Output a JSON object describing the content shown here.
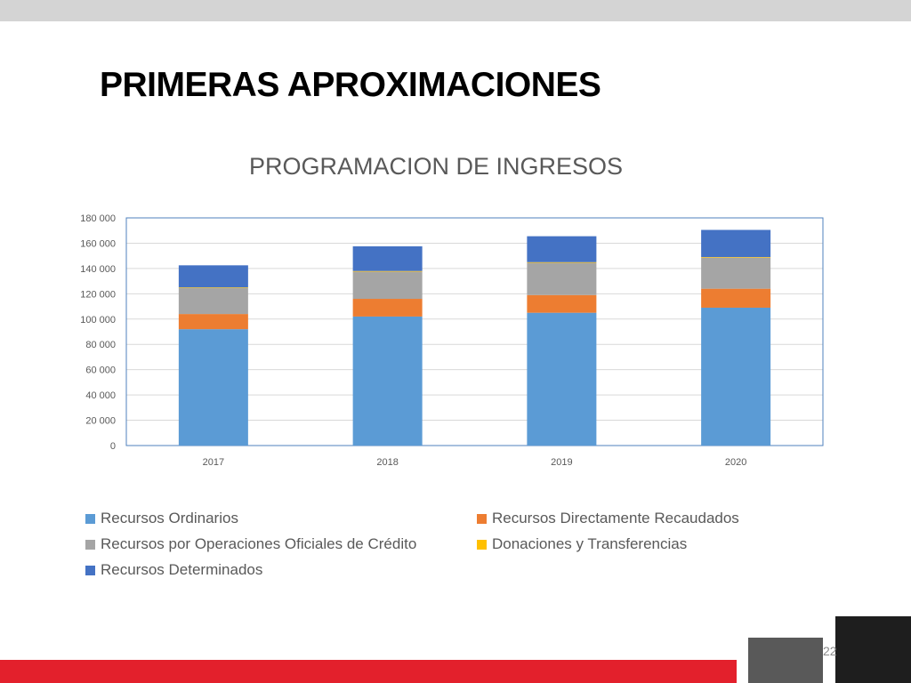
{
  "slide": {
    "title": "PRIMERAS APROXIMACIONES",
    "page_number": "22"
  },
  "colors": {
    "recursos_ordinarios": "#5b9bd5",
    "recursos_directamente_recaudados": "#ed7d31",
    "operaciones_oficiales_credito": "#a5a5a5",
    "donaciones_transferencias": "#ffc000",
    "recursos_determinados": "#4472c4",
    "accent_red": "#e3202c"
  },
  "chart_data": {
    "type": "bar",
    "stacked": true,
    "title": "PROGRAMACION DE INGRESOS",
    "categories": [
      "2017",
      "2018",
      "2019",
      "2020"
    ],
    "y_tick_labels": [
      "0",
      "20 000",
      "40 000",
      "60 000",
      "80 000",
      "100 000",
      "120 000",
      "140 000",
      "160 000",
      "180 000"
    ],
    "ylim": [
      0,
      180000
    ],
    "grid": true,
    "legend_position": "bottom",
    "series": [
      {
        "name": "Recursos Ordinarios",
        "values": [
          92000,
          102000,
          105000,
          109000
        ]
      },
      {
        "name": "Recursos Directamente Recaudados",
        "values": [
          12000,
          14000,
          14000,
          15000
        ]
      },
      {
        "name": "Recursos por Operaciones Oficiales de Crédito",
        "values": [
          20500,
          21500,
          25500,
          24500
        ]
      },
      {
        "name": "Donaciones y Transferencias",
        "values": [
          500,
          500,
          500,
          500
        ]
      },
      {
        "name": "Recursos Determinados",
        "values": [
          17500,
          19500,
          20500,
          21500
        ]
      }
    ]
  }
}
